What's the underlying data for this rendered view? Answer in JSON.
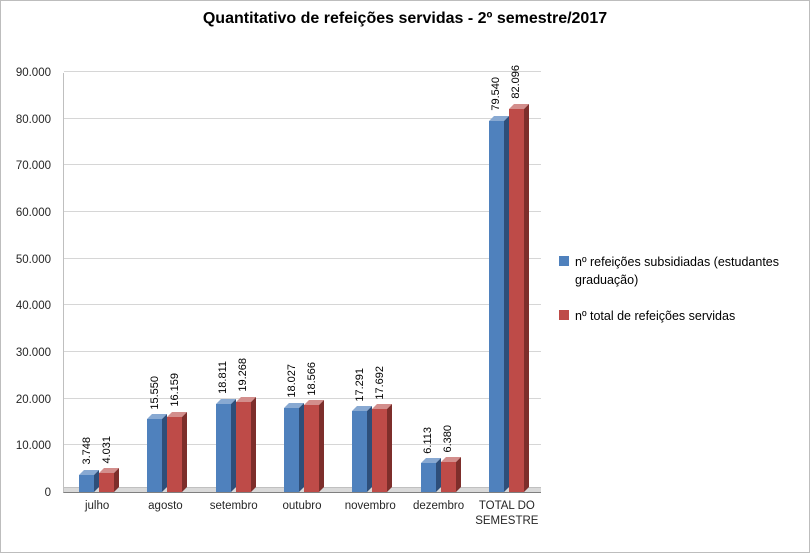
{
  "title": "Quantitativo de refeições servidas - 2º semestre/2017",
  "chart_data": {
    "type": "bar",
    "title": "Quantitativo de refeições servidas - 2º semestre/2017",
    "categories": [
      "julho",
      "agosto",
      "setembro",
      "outubro",
      "novembro",
      "dezembro",
      "TOTAL DO SEMESTRE"
    ],
    "series": [
      {
        "name": "nº refeições subsidiadas (estudantes graduação)",
        "color": "#4F81BD",
        "color_side": "#2E4E79",
        "color_top": "#88A9D2",
        "values": [
          3748,
          15550,
          18811,
          18027,
          17291,
          6113,
          79540
        ],
        "value_labels": [
          "3.748",
          "15.550",
          "18.811",
          "18.027",
          "17.291",
          "6.113",
          "79.540"
        ]
      },
      {
        "name": "nº total de refeições servidas",
        "color": "#BE4B48",
        "color_side": "#7D2E2B",
        "color_top": "#D38E8C",
        "values": [
          4031,
          16159,
          19268,
          18566,
          17692,
          6380,
          82096
        ],
        "value_labels": [
          "4.031",
          "16.159",
          "19.268",
          "18.566",
          "17.692",
          "6.380",
          "82.096"
        ]
      }
    ],
    "ylim": [
      0,
      90000
    ],
    "ytick_step": 10000,
    "ytick_labels": [
      "0",
      "10.000",
      "20.000",
      "30.000",
      "40.000",
      "50.000",
      "60.000",
      "70.000",
      "80.000",
      "90.000"
    ],
    "grid": true,
    "legend_position": "right",
    "bar_labels_rotated": true,
    "style": "3d-clustered-column"
  }
}
